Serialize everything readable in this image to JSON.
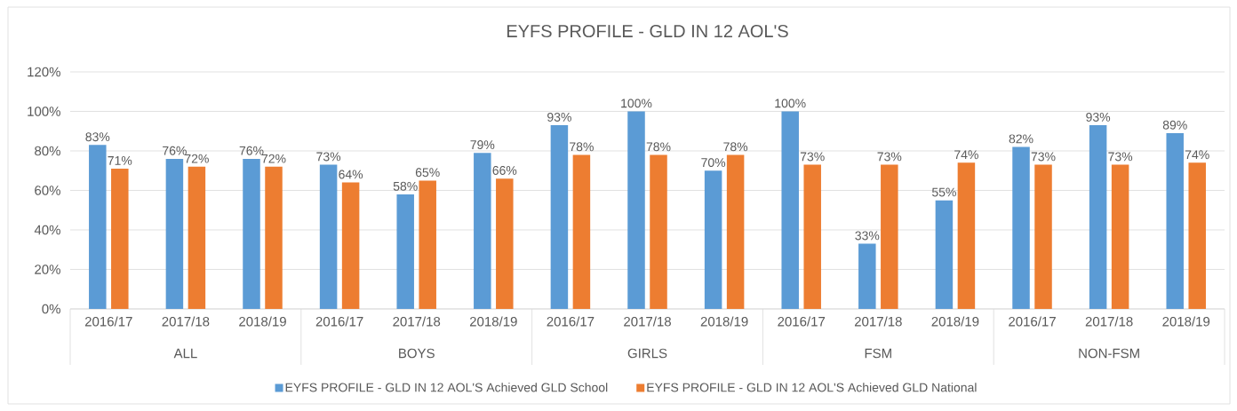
{
  "chart_data": {
    "type": "bar",
    "title": "EYFS PROFILE - GLD IN 12 AOL'S",
    "categories": [
      "2016/17",
      "2017/18",
      "2018/19",
      "2016/17",
      "2017/18",
      "2018/19",
      "2016/17",
      "2017/18",
      "2018/19",
      "2016/17",
      "2017/18",
      "2018/19",
      "2016/17",
      "2017/18",
      "2018/19"
    ],
    "annotations": [
      "ALL",
      "BOYS",
      "GIRLS",
      "FSM",
      "NON-FSM"
    ],
    "series": [
      {
        "name": "EYFS PROFILE - GLD IN 12 AOL'S Achieved GLD School",
        "color": "#5b9bd5",
        "values": [
          83,
          76,
          76,
          73,
          58,
          79,
          93,
          100,
          70,
          100,
          33,
          55,
          82,
          93,
          89
        ],
        "value_labels": [
          "83%",
          "76%",
          "76%",
          "73%",
          "58%",
          "79%",
          "93%",
          "100%",
          "70%",
          "100%",
          "33%",
          "55%",
          "82%",
          "93%",
          "89%"
        ]
      },
      {
        "name": "EYFS PROFILE - GLD IN 12 AOL'S Achieved GLD National",
        "color": "#ed7d31",
        "values": [
          71,
          72,
          72,
          64,
          65,
          66,
          78,
          78,
          78,
          73,
          73,
          74,
          73,
          73,
          74
        ],
        "value_labels": [
          "71%",
          "72%",
          "72%",
          "64%",
          "65%",
          "66%",
          "78%",
          "78%",
          "78%",
          "73%",
          "73%",
          "74%",
          "73%",
          "73%",
          "74%"
        ]
      }
    ],
    "ylim": [
      0,
      120
    ],
    "yticks": [
      {
        "value": 0,
        "label": "0%"
      },
      {
        "value": 20,
        "label": "20%"
      },
      {
        "value": 40,
        "label": "40%"
      },
      {
        "value": 60,
        "label": "60%"
      },
      {
        "value": 80,
        "label": "80%"
      },
      {
        "value": 100,
        "label": "100%"
      },
      {
        "value": 120,
        "label": "120%"
      }
    ],
    "grid": "y",
    "legend": "bottom"
  }
}
